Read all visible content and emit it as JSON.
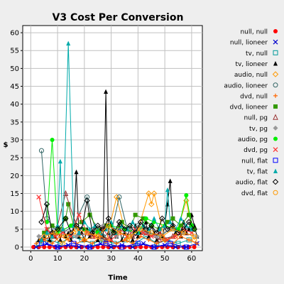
{
  "chart_data": {
    "type": "line",
    "title": "V3 Cost Per Conversion",
    "xlabel": "Time",
    "ylabel": "$",
    "xlim": [
      -3,
      64
    ],
    "ylim": [
      -1,
      62
    ],
    "xticks": [
      0,
      10,
      20,
      30,
      40,
      50,
      60
    ],
    "yticks": [
      0,
      5,
      10,
      15,
      20,
      25,
      30,
      35,
      40,
      45,
      50,
      55,
      60
    ],
    "grid": true,
    "legend_position": "right",
    "series": [
      {
        "name": "null, null",
        "color": "#ff0000",
        "marker": "circle-filled",
        "x": [
          1,
          3,
          5,
          7,
          9,
          11,
          13,
          15,
          17,
          19,
          21,
          23,
          25,
          27,
          29,
          31,
          33,
          35,
          37,
          39,
          41,
          43,
          45,
          47,
          49,
          51,
          53,
          55,
          57,
          59,
          61
        ],
        "y": [
          0,
          0,
          0,
          0,
          0,
          0,
          0,
          0,
          0,
          0,
          0,
          0,
          0,
          0,
          0,
          0,
          0,
          0,
          0,
          0,
          0,
          0,
          0,
          0,
          0,
          0,
          0,
          0,
          0,
          0,
          0
        ]
      },
      {
        "name": "null, lioneer",
        "color": "#0000cc",
        "marker": "x",
        "x": [
          2,
          6,
          10,
          14,
          18,
          22,
          26,
          30,
          34,
          38,
          42,
          46,
          50,
          54,
          58,
          62
        ],
        "y": [
          0,
          1,
          0,
          0.5,
          0,
          0,
          1,
          0,
          0.5,
          0,
          1,
          0,
          0.5,
          0,
          0,
          1
        ]
      },
      {
        "name": "tv, null",
        "color": "#009999",
        "marker": "square-open",
        "x": [
          3,
          7,
          11,
          15,
          19,
          23,
          27,
          31,
          35,
          39,
          43,
          47,
          51,
          55,
          59
        ],
        "y": [
          1,
          2,
          1,
          3,
          2,
          1,
          2,
          1,
          2,
          1,
          3,
          1,
          2,
          1,
          2
        ]
      },
      {
        "name": "tv, lioneer",
        "color": "#000000",
        "marker": "triangle-filled",
        "x": [
          3,
          5,
          6,
          7,
          8,
          9,
          10,
          11,
          12,
          13,
          14,
          15,
          16,
          17,
          18,
          19,
          20,
          21,
          22,
          23,
          24,
          25,
          26,
          27,
          28,
          29,
          30,
          31,
          32,
          33,
          34,
          35,
          36,
          37,
          38,
          39,
          40,
          41,
          42,
          43,
          44,
          45,
          46,
          47,
          48,
          49,
          50,
          51,
          52,
          53,
          54,
          55,
          56,
          57,
          58,
          59,
          60,
          61,
          62
        ],
        "y": [
          2,
          3,
          5,
          2,
          4,
          3,
          6,
          2,
          5,
          3,
          4,
          2,
          6,
          21,
          3,
          4,
          2,
          5,
          3,
          4,
          6,
          2,
          5,
          3,
          43.5,
          4,
          2,
          5,
          3,
          6,
          2,
          4,
          3,
          5,
          2,
          6,
          3,
          4,
          5,
          7,
          3,
          6,
          4,
          2,
          5,
          3,
          6,
          12,
          18.5,
          6,
          4,
          5,
          3,
          7,
          4,
          5,
          9,
          6,
          3
        ]
      },
      {
        "name": "audio, null",
        "color": "#ff9900",
        "marker": "diamond-open",
        "x": [
          4,
          8,
          12,
          16,
          20,
          24,
          28,
          32,
          36,
          40,
          44,
          45,
          46,
          50,
          54,
          58,
          61
        ],
        "y": [
          2,
          3,
          1,
          4,
          2,
          3,
          1,
          14,
          2,
          5,
          15,
          12,
          15,
          2,
          3,
          13,
          2
        ]
      },
      {
        "name": "audio, lioneer",
        "color": "#336666",
        "marker": "circle-open",
        "x": [
          4,
          6,
          9,
          12,
          16,
          21,
          24,
          27,
          30,
          33,
          36,
          40,
          44,
          48,
          52,
          56,
          60
        ],
        "y": [
          27,
          8,
          5,
          4,
          6,
          14,
          5,
          3,
          4,
          14,
          5,
          6,
          4,
          3,
          5,
          4,
          6
        ]
      },
      {
        "name": "dvd, null",
        "color": "#ff6600",
        "marker": "plus",
        "x": [
          2,
          5,
          8,
          11,
          14,
          17,
          20,
          23,
          26,
          29,
          32,
          35,
          38,
          41,
          44,
          47,
          50,
          53,
          56,
          59,
          62
        ],
        "y": [
          1,
          2,
          1,
          3,
          2,
          1,
          2,
          1,
          3,
          2,
          1,
          2,
          1,
          3,
          2,
          1,
          2,
          1,
          3,
          2,
          1
        ]
      },
      {
        "name": "dvd, lioneer",
        "color": "#339900",
        "marker": "square-filled",
        "x": [
          5,
          8,
          11,
          13,
          14,
          16,
          19,
          22,
          25,
          28,
          31,
          34,
          37,
          39,
          42,
          45,
          48,
          51,
          53,
          56,
          59,
          61
        ],
        "y": [
          4,
          6,
          5,
          8,
          12,
          6,
          7,
          9,
          5,
          6,
          4,
          7,
          5,
          9,
          8,
          6,
          5,
          7,
          8,
          6,
          9,
          5
        ]
      },
      {
        "name": "null, pg",
        "color": "#993333",
        "marker": "triangle-open",
        "x": [
          4,
          9,
          13,
          18,
          23,
          28,
          33,
          38,
          43,
          48,
          53,
          58
        ],
        "y": [
          2,
          3,
          15,
          4,
          3,
          2,
          5,
          3,
          4,
          2,
          3,
          4
        ]
      },
      {
        "name": "tv, pg",
        "color": "#999999",
        "marker": "diamond-filled",
        "x": [
          3,
          7,
          12,
          17,
          22,
          27,
          32,
          37,
          42,
          47,
          52,
          57,
          62
        ],
        "y": [
          3,
          4,
          5,
          3,
          4,
          6,
          3,
          5,
          4,
          3,
          5,
          4,
          3
        ]
      },
      {
        "name": "audio, pg",
        "color": "#00ee00",
        "marker": "circle-filled",
        "x": [
          6,
          8,
          10,
          15,
          20,
          25,
          30,
          35,
          40,
          43,
          46,
          50,
          55,
          58,
          60
        ],
        "y": [
          7,
          30,
          4,
          6,
          5,
          4,
          6,
          5,
          4,
          8,
          7,
          6,
          5,
          14.5,
          6
        ]
      },
      {
        "name": "dvd, pg",
        "color": "#ff3333",
        "marker": "x",
        "x": [
          3,
          6,
          9,
          12,
          15,
          18,
          21,
          24,
          27,
          30,
          33,
          36,
          39,
          42,
          45,
          48,
          51,
          54,
          57,
          60
        ],
        "y": [
          14,
          5,
          3,
          4,
          3,
          9,
          4,
          3,
          5,
          2,
          4,
          3,
          5,
          4,
          3,
          4,
          2,
          3,
          5,
          4
        ]
      },
      {
        "name": "null, flat",
        "color": "#0000ff",
        "marker": "square-open",
        "x": [
          4,
          10,
          16,
          22,
          28,
          34,
          40,
          46,
          52,
          58
        ],
        "y": [
          1,
          0,
          1,
          0,
          1,
          0,
          1,
          0,
          1,
          0
        ]
      },
      {
        "name": "tv, flat",
        "color": "#00aaaa",
        "marker": "triangle-filled",
        "x": [
          4,
          6,
          8,
          10,
          11,
          12,
          14,
          16,
          18,
          20,
          22,
          24,
          26,
          28,
          30,
          32,
          34,
          36,
          38,
          40,
          42,
          44,
          46,
          48,
          50,
          51,
          52,
          54,
          56,
          58,
          60
        ],
        "y": [
          2,
          4,
          3,
          6,
          24,
          5,
          57,
          6,
          4,
          7,
          5,
          6,
          4,
          5,
          7,
          4,
          6,
          5,
          7,
          4,
          6,
          5,
          8,
          5,
          6,
          16,
          7,
          5,
          8,
          6,
          5
        ]
      },
      {
        "name": "audio, flat",
        "color": "#000000",
        "marker": "diamond-open",
        "x": [
          4,
          6,
          8,
          10,
          13,
          15,
          17,
          19,
          21,
          23,
          25,
          27,
          29,
          31,
          33,
          35,
          37,
          39,
          41,
          43,
          45,
          47,
          49,
          51,
          53,
          55,
          57,
          59,
          61
        ],
        "y": [
          7,
          12,
          4,
          5,
          8,
          4,
          6,
          5,
          13,
          4,
          6,
          5,
          8,
          4,
          7,
          5,
          6,
          4,
          7,
          5,
          6,
          4,
          8,
          5,
          6,
          4,
          5,
          7,
          5
        ]
      },
      {
        "name": "dvd, flat",
        "color": "#ff9900",
        "marker": "circle-open",
        "x": [
          5,
          9,
          13,
          17,
          21,
          25,
          29,
          33,
          37,
          41,
          45,
          49,
          53,
          57,
          61
        ],
        "y": [
          3,
          4,
          3,
          5,
          4,
          3,
          6,
          4,
          3,
          5,
          4,
          3,
          5,
          4,
          3
        ]
      }
    ]
  }
}
